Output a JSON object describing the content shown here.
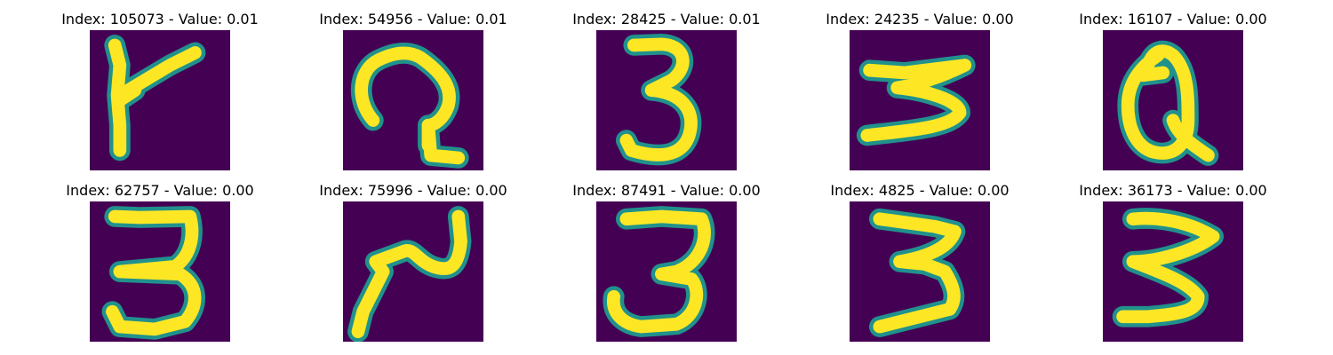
{
  "panels": [
    {
      "title": "Index: 105073 - Value: 0.01",
      "glyph": "k-like"
    },
    {
      "title": "Index: 54956 - Value: 0.01",
      "glyph": "curl-2"
    },
    {
      "title": "Index: 28425 - Value: 0.01",
      "glyph": "three"
    },
    {
      "title": "Index: 24235 - Value: 0.00",
      "glyph": "flat-three"
    },
    {
      "title": "Index: 16107 - Value: 0.00",
      "glyph": "loop-q"
    },
    {
      "title": "Index: 62757 - Value: 0.00",
      "glyph": "three"
    },
    {
      "title": "Index: 75996 - Value: 0.00",
      "glyph": "tilted-two"
    },
    {
      "title": "Index: 87491 - Value: 0.00",
      "glyph": "three"
    },
    {
      "title": "Index: 4825 - Value: 0.00",
      "glyph": "three"
    },
    {
      "title": "Index: 36173 - Value: 0.00",
      "glyph": "three"
    }
  ],
  "colors": {
    "background": "#440154",
    "stroke_edge": "#21918c",
    "stroke_core": "#fde725"
  }
}
